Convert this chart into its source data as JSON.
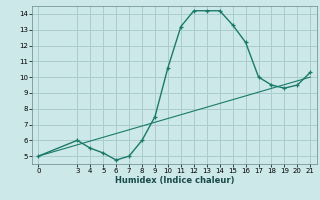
{
  "xlabel": "Humidex (Indice chaleur)",
  "bg_color": "#cce8e8",
  "grid_color": "#aacccc",
  "line_color": "#1a7a6a",
  "xlim": [
    -0.5,
    21.5
  ],
  "ylim": [
    4.5,
    14.5
  ],
  "xticks": [
    0,
    3,
    4,
    5,
    6,
    7,
    8,
    9,
    10,
    11,
    12,
    13,
    14,
    15,
    16,
    17,
    18,
    19,
    20,
    21
  ],
  "yticks": [
    5,
    6,
    7,
    8,
    9,
    10,
    11,
    12,
    13,
    14
  ],
  "curve1_x": [
    0,
    3,
    4,
    5,
    6,
    7,
    8,
    9,
    10,
    11,
    12,
    13,
    14,
    15,
    16,
    17,
    18,
    19,
    20,
    21
  ],
  "curve1_y": [
    5.0,
    6.0,
    5.5,
    5.2,
    4.75,
    5.0,
    6.0,
    7.5,
    10.6,
    13.2,
    14.2,
    14.2,
    14.2,
    13.3,
    12.2,
    10.0,
    9.5,
    9.3,
    9.5,
    10.3
  ],
  "curve2_x": [
    0,
    21
  ],
  "curve2_y": [
    5.0,
    10.0
  ]
}
